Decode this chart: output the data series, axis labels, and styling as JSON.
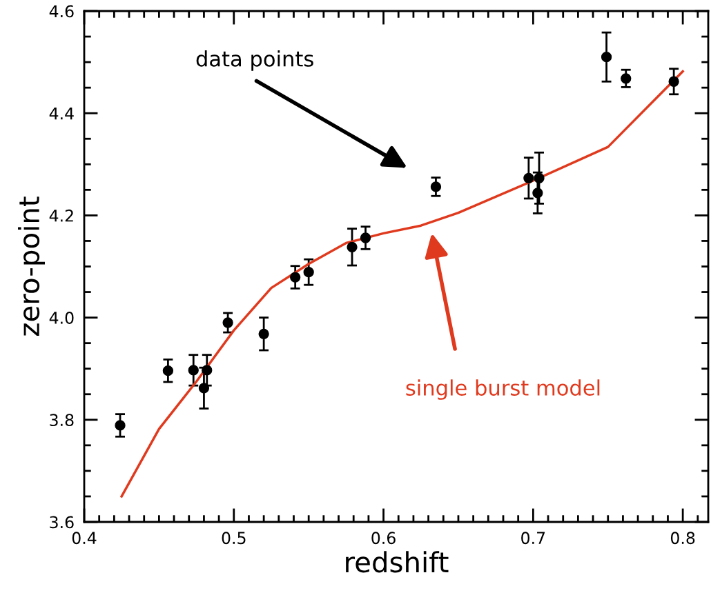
{
  "chart_data": {
    "type": "scatter",
    "xlabel": "redshift",
    "ylabel": "zero-point",
    "xlim": [
      0.4,
      0.817
    ],
    "ylim": [
      3.6,
      4.6
    ],
    "xticks": [
      {
        "value": 0.4,
        "label": "0.4"
      },
      {
        "value": 0.5,
        "label": "0.5"
      },
      {
        "value": 0.6,
        "label": "0.6"
      },
      {
        "value": 0.7,
        "label": "0.7"
      },
      {
        "value": 0.8,
        "label": "0.8"
      }
    ],
    "yticks": [
      {
        "value": 3.6,
        "label": "3.6"
      },
      {
        "value": 3.8,
        "label": "3.8"
      },
      {
        "value": 4.0,
        "label": "4.0"
      },
      {
        "value": 4.2,
        "label": "4.2"
      },
      {
        "value": 4.4,
        "label": "4.4"
      },
      {
        "value": 4.6,
        "label": "4.6"
      }
    ],
    "grid": false,
    "legend": false,
    "marker": "circle",
    "series": [
      {
        "color": "#000000",
        "x": [
          0.424,
          0.456,
          0.473,
          0.48,
          0.482,
          0.496,
          0.52,
          0.541,
          0.55,
          0.579,
          0.588,
          0.635,
          0.697,
          0.704,
          0.703,
          0.749,
          0.762,
          0.794
        ],
        "values": [
          3.789,
          3.896,
          3.897,
          3.862,
          3.897,
          3.99,
          3.968,
          4.079,
          4.089,
          4.138,
          4.156,
          4.256,
          4.273,
          4.273,
          4.244,
          4.51,
          4.468,
          4.462
        ],
        "errors": [
          0.022,
          0.022,
          0.03,
          0.04,
          0.03,
          0.019,
          0.032,
          0.022,
          0.025,
          0.036,
          0.022,
          0.018,
          0.04,
          0.05,
          0.04,
          0.048,
          0.017,
          0.025
        ]
      },
      {
        "type": "line",
        "color": "#e03a1e",
        "marker": "none",
        "line_style": "solid",
        "x": [
          0.425,
          0.45,
          0.475,
          0.5,
          0.525,
          0.55,
          0.575,
          0.6,
          0.625,
          0.65,
          0.7,
          0.75,
          0.8
        ],
        "values": [
          3.65,
          3.782,
          3.875,
          3.975,
          4.058,
          4.105,
          4.146,
          4.165,
          4.18,
          4.205,
          4.268,
          4.334,
          4.482
        ]
      }
    ],
    "annotations": [
      "data points",
      "single burst model"
    ]
  }
}
